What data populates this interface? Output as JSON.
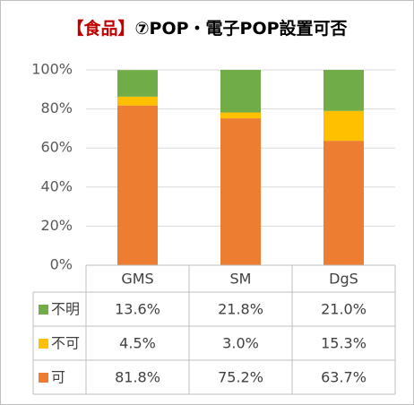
{
  "title": {
    "part1": "【食品】",
    "part2": "⑦POP・電子POP設置可否"
  },
  "colors": {
    "可": "#ed7d31",
    "不可": "#ffc000",
    "不明": "#70ad47",
    "grid": "#d9d9d9",
    "table_line": "#bfbfbf"
  },
  "chart_data": {
    "type": "bar",
    "stacked": true,
    "categories": [
      "GMS",
      "SM",
      "DgS"
    ],
    "series": [
      {
        "name": "可",
        "values": [
          81.8,
          75.2,
          63.7
        ],
        "labels": [
          "81.8%",
          "75.2%",
          "63.7%"
        ]
      },
      {
        "name": "不可",
        "values": [
          4.5,
          3.0,
          15.3
        ],
        "labels": [
          "4.5%",
          "3.0%",
          "15.3%"
        ]
      },
      {
        "name": "不明",
        "values": [
          13.6,
          21.8,
          21.0
        ],
        "labels": [
          "13.6%",
          "21.8%",
          "21.0%"
        ]
      }
    ],
    "yticks": [
      "0%",
      "20%",
      "40%",
      "60%",
      "80%",
      "100%"
    ],
    "ylim": [
      0,
      100
    ],
    "grid": true,
    "table_row_order": [
      "不明",
      "不可",
      "可"
    ]
  }
}
